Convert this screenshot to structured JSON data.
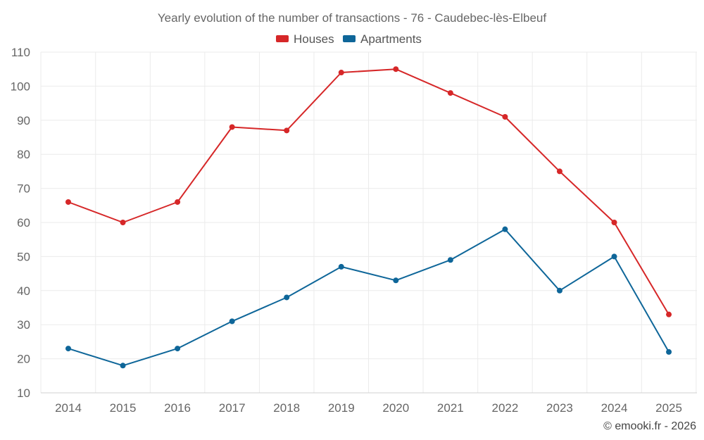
{
  "chart_data": {
    "type": "line",
    "title": "Yearly evolution of the number of transactions - 76 - Caudebec-lès-Elbeuf",
    "xlabel": "",
    "ylabel": "",
    "categories": [
      "2014",
      "2015",
      "2016",
      "2017",
      "2018",
      "2019",
      "2020",
      "2021",
      "2022",
      "2023",
      "2024",
      "2025"
    ],
    "y_ticks": [
      "10",
      "20",
      "30",
      "40",
      "50",
      "60",
      "70",
      "80",
      "90",
      "100",
      "110"
    ],
    "ylim": [
      10,
      110
    ],
    "grid": true,
    "legend_position": "top-center",
    "series": [
      {
        "name": "Houses",
        "color": "#d62728",
        "values": [
          66,
          60,
          66,
          88,
          87,
          104,
          105,
          98,
          91,
          75,
          60,
          33
        ]
      },
      {
        "name": "Apartments",
        "color": "#0e6699",
        "values": [
          23,
          18,
          23,
          31,
          38,
          47,
          43,
          49,
          58,
          40,
          50,
          22
        ]
      }
    ],
    "credit": "© emooki.fr - 2026"
  }
}
